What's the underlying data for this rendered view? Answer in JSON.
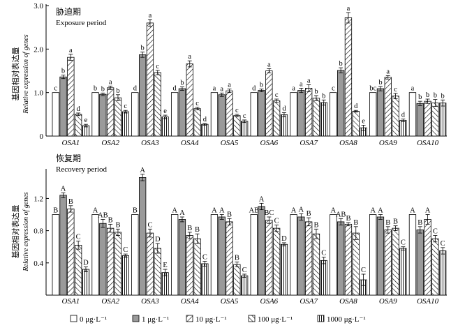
{
  "legend": [
    {
      "label": "0 μg·L⁻¹",
      "pattern": "white"
    },
    {
      "label": "1 μg·L⁻¹",
      "pattern": "gray"
    },
    {
      "label": "10 μg·L⁻¹",
      "pattern": "hatch-right"
    },
    {
      "label": "100 μg·L⁻¹",
      "pattern": "hatch-left"
    },
    {
      "label": "1000 μg·L⁻¹",
      "pattern": "vertical"
    }
  ],
  "chart_data": [
    {
      "type": "bar",
      "title": "胁迫期",
      "subtitle": "Exposure period",
      "ylabel": "基因相对表达量",
      "ylabel2": "Relative expression of genes",
      "ylim": [
        0,
        3.0
      ],
      "yticks": [
        "0",
        "1.0",
        "2.0",
        "3.0"
      ],
      "categories": [
        "OSA1",
        "OSA2",
        "OSA3",
        "OSA4",
        "OSA5",
        "OSA6",
        "OSA7",
        "OSA8",
        "OSA9",
        "OSA10"
      ],
      "series": [
        {
          "name": "0 μg·L⁻¹",
          "values": [
            1.0,
            1.0,
            1.0,
            1.0,
            1.0,
            1.0,
            1.0,
            1.0,
            1.0,
            1.0
          ],
          "errors": [
            0,
            0,
            0,
            0,
            0,
            0,
            0,
            0,
            0,
            0
          ],
          "letters": [
            "c",
            "b",
            "d",
            "d",
            "a",
            "d",
            "a",
            "c",
            "bc",
            "a"
          ]
        },
        {
          "name": "1 μg·L⁻¹",
          "values": [
            1.36,
            0.96,
            1.87,
            1.09,
            0.95,
            1.05,
            1.05,
            1.51,
            1.09,
            0.75
          ],
          "errors": [
            0.04,
            0.03,
            0.06,
            0.04,
            0.04,
            0.03,
            0.05,
            0.06,
            0.05,
            0.05
          ],
          "letters": [
            "b",
            "b",
            "b",
            "b",
            "a",
            "b",
            "a",
            "b",
            "b",
            "b"
          ]
        },
        {
          "name": "10 μg·L⁻¹",
          "values": [
            1.81,
            1.11,
            2.6,
            1.66,
            1.04,
            1.5,
            1.1,
            2.72,
            1.35,
            0.8
          ],
          "errors": [
            0.07,
            0.04,
            0.08,
            0.07,
            0.04,
            0.05,
            0.08,
            0.12,
            0.04,
            0.05
          ],
          "letters": [
            "a",
            "a",
            "a",
            "a",
            "a",
            "a",
            "a",
            "a",
            "a",
            "b"
          ]
        },
        {
          "name": "100 μg·L⁻¹",
          "values": [
            0.5,
            0.88,
            1.46,
            0.63,
            0.47,
            0.81,
            0.87,
            0.57,
            0.92,
            0.76
          ],
          "errors": [
            0.03,
            0.07,
            0.05,
            0.03,
            0.03,
            0.04,
            0.06,
            0.02,
            0.06,
            0.08
          ],
          "letters": [
            "d",
            "b",
            "c",
            "c",
            "c",
            "c",
            "b",
            "d",
            "c",
            "b"
          ]
        },
        {
          "name": "1000 μg·L⁻¹",
          "values": [
            0.24,
            0.56,
            0.44,
            0.27,
            0.34,
            0.49,
            0.77,
            0.19,
            0.36,
            0.76
          ],
          "errors": [
            0.03,
            0.03,
            0.04,
            0.02,
            0.03,
            0.05,
            0.06,
            0.06,
            0.03,
            0.07
          ],
          "letters": [
            "e",
            "c",
            "e",
            "d",
            "c",
            "d",
            "b",
            "e",
            "d",
            "b"
          ]
        }
      ]
    },
    {
      "type": "bar",
      "title": "恢复期",
      "subtitle": "Recovery period",
      "ylabel": "基因相对表达量",
      "ylabel2": "Relative expression of genes",
      "ylim": [
        0,
        1.55
      ],
      "yticks": [
        "0.4",
        "0.8",
        "1.2"
      ],
      "categories": [
        "OSA1",
        "OSA2",
        "OSA3",
        "OSA4",
        "OSA5",
        "OSA6",
        "OSA7",
        "OSA8",
        "OSA9",
        "OSA10"
      ],
      "series": [
        {
          "name": "0 μg·L⁻¹",
          "values": [
            1.0,
            1.0,
            1.0,
            1.0,
            1.0,
            1.0,
            1.0,
            1.0,
            1.0,
            1.0
          ],
          "errors": [
            0,
            0,
            0,
            0,
            0,
            0,
            0,
            0,
            0,
            0
          ],
          "letters": [
            "B",
            "A",
            "B",
            "A",
            "A",
            "AB",
            "A",
            "A",
            "A",
            "A"
          ]
        },
        {
          "name": "1 μg·L⁻¹",
          "values": [
            1.24,
            0.89,
            1.46,
            0.94,
            0.97,
            1.1,
            0.97,
            0.91,
            0.97,
            0.81
          ],
          "errors": [
            0.03,
            0.05,
            0.04,
            0.03,
            0.03,
            0.04,
            0.04,
            0.04,
            0.03,
            0.04
          ],
          "letters": [
            "A",
            "AB",
            "A",
            "A",
            "A",
            "A",
            "A",
            "AB",
            "A",
            "B"
          ]
        },
        {
          "name": "10 μg·L⁻¹",
          "values": [
            1.07,
            0.83,
            0.77,
            0.74,
            0.91,
            0.93,
            0.91,
            0.88,
            0.81,
            0.94
          ],
          "errors": [
            0.04,
            0.05,
            0.05,
            0.04,
            0.04,
            0.04,
            0.05,
            0.02,
            0.04,
            0.06
          ],
          "letters": [
            "B",
            "B",
            "C",
            "B",
            "B",
            "BC",
            "B",
            "B",
            "B",
            "A"
          ]
        },
        {
          "name": "100 μg·L⁻¹",
          "values": [
            0.62,
            0.78,
            0.58,
            0.7,
            0.38,
            0.83,
            0.76,
            0.77,
            0.83,
            0.7
          ],
          "errors": [
            0.05,
            0.04,
            0.06,
            0.06,
            0.03,
            0.04,
            0.06,
            0.08,
            0.03,
            0.04
          ],
          "letters": [
            "C",
            "B",
            "D",
            "B",
            "B",
            "C",
            "B",
            "B",
            "B",
            "C"
          ]
        },
        {
          "name": "1000 μg·L⁻¹",
          "values": [
            0.32,
            0.49,
            0.28,
            0.39,
            0.24,
            0.63,
            0.43,
            0.19,
            0.58,
            0.55
          ],
          "errors": [
            0.03,
            0.02,
            0.04,
            0.03,
            0.02,
            0.02,
            0.04,
            0.07,
            0.02,
            0.04
          ],
          "letters": [
            "D",
            "C",
            "E",
            "C",
            "C",
            "D",
            "C",
            "C",
            "C",
            "C"
          ]
        }
      ]
    }
  ]
}
